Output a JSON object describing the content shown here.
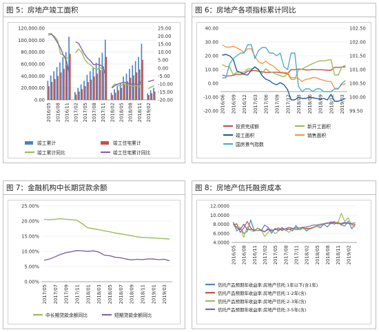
{
  "panels": {
    "p5": {
      "title": "图 5：房地产竣工面积"
    },
    "p6": {
      "title": "图 6：房地产各项指标累计同比"
    },
    "p7": {
      "title": "图 7：金融机构中长期贷款余额"
    },
    "p8": {
      "title": "图 8：房地产信托融资成本"
    }
  },
  "chart_data": [
    {
      "type": "bar",
      "x": [
        "2016/05",
        "2016/06",
        "2016/07",
        "2016/08",
        "2016/09",
        "2016/10",
        "2016/11",
        "2016/12",
        "2017/01",
        "2017/02",
        "2017/03",
        "2017/04",
        "2017/05",
        "2017/06",
        "2017/07",
        "2017/08",
        "2017/09",
        "2017/10",
        "2017/11",
        "2017/12",
        "2018/01",
        "2018/02",
        "2018/03",
        "2018/04",
        "2018/05",
        "2018/06",
        "2018/07",
        "2018/08",
        "2018/09",
        "2018/10",
        "2018/11",
        "2018/12",
        "2019/01",
        "2019/02",
        "2019/03",
        "2019/04"
      ],
      "x_tick_labels": [
        "2016/05",
        "2016/08",
        "2016/11",
        "2017/02",
        "2017/05",
        "2017/08",
        "2017/11",
        "2018/02",
        "2018/05",
        "2018/08",
        "2018/11",
        "2019/02"
      ],
      "y_left_ticks": [
        "0.00",
        "20,000.00",
        "40,000.00",
        "60,000.00",
        "80,000.00",
        "100,000.00",
        "120,000.00"
      ],
      "y_right_ticks": [
        "25.00",
        "20.00",
        "15.00",
        "10.00",
        "5.00",
        "0.00",
        "-5.00",
        "-10.00",
        "-15.00",
        "-20.00"
      ],
      "ylim_left": [
        0,
        120000
      ],
      "ylim_right": [
        -20,
        25
      ],
      "series": [
        {
          "name": "竣工累计",
          "kind": "bar",
          "axis": "left",
          "color": "#4f81bd",
          "values": [
            32000,
            41000,
            48000,
            55000,
            63000,
            72000,
            80000,
            106000,
            null,
            13000,
            20000,
            26000,
            32000,
            42000,
            48000,
            55000,
            62000,
            71000,
            79000,
            101000,
            null,
            12000,
            18000,
            23000,
            28000,
            39000,
            44000,
            52000,
            58000,
            65000,
            72000,
            94000,
            null,
            11000,
            16000,
            20000
          ]
        },
        {
          "name": "竣工住宅累计",
          "kind": "bar",
          "axis": "left",
          "color": "#c0504d",
          "values": [
            23000,
            30000,
            35000,
            40000,
            46000,
            52000,
            58000,
            77000,
            null,
            9000,
            14000,
            18000,
            23000,
            30000,
            34000,
            39000,
            44000,
            50000,
            56000,
            72000,
            null,
            8000,
            12000,
            16000,
            20000,
            27000,
            31000,
            37000,
            41000,
            46000,
            51000,
            67000,
            null,
            8000,
            11000,
            14000
          ]
        },
        {
          "name": "竣工累计同比",
          "kind": "line",
          "axis": "right",
          "color": "#9bbb59",
          "values": [
            20.5,
            21,
            20,
            17.5,
            9,
            8,
            6.5,
            6,
            null,
            9.5,
            12,
            10,
            5.5,
            3,
            2,
            0,
            -1,
            0.5,
            -1,
            -4.5,
            null,
            -12,
            -10,
            -11,
            -11,
            -10,
            -10.5,
            -11,
            -11.5,
            -11,
            -12,
            -8,
            null,
            -13,
            -12,
            -11
          ]
        },
        {
          "name": "竣工住宅累计同比",
          "kind": "line",
          "axis": "right",
          "color": "#8064a2",
          "values": [
            21.5,
            21.5,
            19,
            16,
            12.5,
            8,
            4.5,
            -4.5,
            null,
            16.5,
            15.5,
            12,
            8.5,
            6,
            4.5,
            2,
            2.5,
            2,
            1,
            -5,
            null,
            -12.5,
            -11,
            -10,
            -9.5,
            -9,
            -9.5,
            -10,
            -10,
            -10,
            -10.5,
            -7.5,
            null,
            -8.5,
            -8,
            -7.5
          ]
        }
      ]
    },
    {
      "type": "line",
      "x": [
        "2016/06",
        "2016/07",
        "2016/08",
        "2016/09",
        "2016/10",
        "2016/11",
        "2016/12",
        "2017/01",
        "2017/02",
        "2017/03",
        "2017/04",
        "2017/05",
        "2017/06",
        "2017/07",
        "2017/08",
        "2017/09",
        "2017/10",
        "2017/11",
        "2017/12",
        "2018/01",
        "2018/02",
        "2018/03",
        "2018/04",
        "2018/05",
        "2018/06",
        "2018/07",
        "2018/08",
        "2018/09",
        "2018/10",
        "2018/11",
        "2018/12",
        "2019/01",
        "2019/02",
        "2019/03",
        "2019/04"
      ],
      "x_tick_labels": [
        "2016/06",
        "2016/09",
        "2016/12",
        "2017/03",
        "2017/06",
        "2017/09",
        "2017/12",
        "2018/03",
        "2018/06",
        "2018/09",
        "2018/12",
        "2019/03"
      ],
      "y_left_ticks": [
        "-20.00",
        "-10.00",
        "0.00",
        "10.00",
        "20.00",
        "30.00",
        "40.00"
      ],
      "y_right_ticks": [
        "99.50",
        "100.00",
        "100.50",
        "101.00",
        "101.50",
        "102.00",
        "102.50"
      ],
      "ylim_left": [
        -20,
        40
      ],
      "ylim_right": [
        99.5,
        102.5
      ],
      "series": [
        {
          "name": "投资完成额",
          "axis": "left",
          "color": "#c0504d",
          "values": [
            6,
            5.3,
            5.4,
            5.8,
            6.6,
            6.5,
            6.9,
            8.9,
            9.1,
            9.3,
            8.8,
            8.5,
            7.9,
            7.9,
            8.1,
            8.1,
            7.8,
            7.5,
            7,
            9.9,
            9.9,
            10.4,
            10.2,
            9.7,
            9.7,
            10.1,
            9.9,
            9.9,
            9.7,
            9.5,
            9.5,
            11.6,
            11.6,
            11.8,
            11.9
          ]
        },
        {
          "name": "新开工面积",
          "axis": "left",
          "color": "#9bbb59",
          "values": [
            13.7,
            12.2,
            12.1,
            6.2,
            8,
            8.1,
            8.1,
            10.4,
            10.4,
            11.6,
            9.6,
            7.3,
            10.6,
            8.5,
            7.9,
            6.4,
            5.6,
            4.8,
            7,
            2.9,
            2.9,
            9.7,
            10.4,
            11.8,
            13.2,
            14.4,
            15.5,
            16.4,
            16.3,
            16.8,
            17.2,
            6,
            6,
            11.9,
            13.1
          ]
        },
        {
          "name": "竣工面积",
          "axis": "left",
          "color": "#1f5c99",
          "values": [
            20.5,
            21,
            20,
            17.5,
            9,
            8,
            6.5,
            6,
            9.5,
            12,
            10,
            5.5,
            3,
            2,
            0,
            -1,
            0.5,
            -1,
            -4.5,
            -12,
            -12,
            -10,
            -11,
            -11,
            -10,
            -10.5,
            -11,
            -11.5,
            -11,
            -12,
            -8,
            -13,
            -13,
            -12,
            -11
          ]
        },
        {
          "name": "销售面积",
          "axis": "left",
          "color": "#f79646",
          "values": [
            27.9,
            26.4,
            26.2,
            26.9,
            25.8,
            24.3,
            22.5,
            25.1,
            25.1,
            19.5,
            15.7,
            14.3,
            16.1,
            14,
            12.7,
            10.3,
            8.2,
            7.9,
            7.7,
            4.1,
            4.1,
            3.6,
            1.3,
            2.9,
            3.3,
            4.2,
            4,
            2.9,
            2.2,
            1.4,
            1.3,
            -3.6,
            -3.6,
            -0.9,
            -0.3
          ]
        },
        {
          "name": "国房景气指数",
          "axis": "right",
          "color": "#4bacc6",
          "values": [
            100.7,
            100.7,
            101.2,
            101.4,
            101.5,
            101.6,
            101.6,
            101.9,
            101.9,
            101.4,
            101.7,
            101.8,
            101.8,
            101.6,
            101.6,
            101.5,
            101.6,
            101.1,
            101,
            101.6,
            101.6,
            100.4,
            100.2,
            100.3,
            100.3,
            100.2,
            100.3,
            100.3,
            100.2,
            100.2,
            100.2,
            100.3,
            100.3,
            100.5,
            100.6
          ]
        }
      ]
    },
    {
      "type": "line",
      "x": [
        "2017/05",
        "2017/06",
        "2017/07",
        "2017/08",
        "2017/09",
        "2017/10",
        "2017/11",
        "2017/12",
        "2018/01",
        "2018/02",
        "2018/03",
        "2018/04",
        "2018/05",
        "2018/06",
        "2018/07",
        "2018/08",
        "2018/09",
        "2018/10",
        "2018/11",
        "2018/12",
        "2019/01",
        "2019/02",
        "2019/03",
        "2019/04"
      ],
      "x_tick_labels": [
        "2017/05",
        "2017/07",
        "2017/09",
        "2017/11",
        "2018/01",
        "2018/03",
        "2018/05",
        "2018/07",
        "2018/09",
        "2018/11",
        "2019/01",
        "2019/03"
      ],
      "y_ticks": [
        "0.00%",
        "5.00%",
        "10.00%",
        "15.00%",
        "20.00%",
        "25.00%"
      ],
      "ylim": [
        0,
        25
      ],
      "series": [
        {
          "name": "中长期贷款余额同比",
          "color": "#9bbb59",
          "values": [
            20.6,
            20.5,
            20.6,
            20.8,
            20.6,
            20.5,
            20.3,
            19.1,
            17.8,
            17.5,
            17.2,
            16.8,
            16.5,
            16.1,
            15.8,
            15.5,
            15.2,
            14.8,
            14.6,
            14.5,
            14.4,
            14.3,
            14.2,
            14.1
          ]
        },
        {
          "name": "短期贷款余额同比",
          "color": "#8064a2",
          "values": [
            7.1,
            7.5,
            8.2,
            9,
            9.6,
            9.9,
            10.3,
            10.2,
            10,
            10.2,
            9.8,
            8.8,
            8.6,
            8.1,
            7.9,
            7.5,
            7.2,
            7.4,
            7.3,
            7.5,
            7.5,
            7.3,
            7.4,
            6.9
          ]
        }
      ]
    },
    {
      "type": "line",
      "x": [
        "2016/05",
        "2016/06",
        "2016/07",
        "2016/08",
        "2016/09",
        "2016/10",
        "2016/11",
        "2016/12",
        "2017/01",
        "2017/02",
        "2017/03",
        "2017/04",
        "2017/05",
        "2017/06",
        "2017/07",
        "2017/08",
        "2017/09",
        "2017/10",
        "2017/11",
        "2017/12",
        "2018/01",
        "2018/02",
        "2018/03",
        "2018/04",
        "2018/05",
        "2018/06",
        "2018/07",
        "2018/08",
        "2018/09",
        "2018/10",
        "2018/11",
        "2018/12",
        "2019/01",
        "2019/02",
        "2019/03",
        "2019/04"
      ],
      "x_tick_labels": [
        "2016/05",
        "2016/08",
        "2016/11",
        "2017/02",
        "2017/05",
        "2017/08",
        "2017/11",
        "2018/02",
        "2018/05",
        "2018/08",
        "2018/11",
        "2019/02"
      ],
      "y_ticks": [
        "4.0000",
        "6.0000",
        "8.0000",
        "10.0000",
        "12.0000"
      ],
      "ylim": [
        4,
        12
      ],
      "series": [
        {
          "name": "信托产品预期年收益率:房地产信托:1年以下(含1年)",
          "color": "#4f81bd",
          "values": [
            8.5,
            6.5,
            7.2,
            6,
            6.4,
            8.9,
            6.6,
            7.2,
            6.5,
            7.8,
            7.3,
            6,
            7.1,
            6.5,
            7.3,
            6.6,
            7,
            6.5,
            7.7,
            6.8,
            7.4,
            6.5,
            7,
            7.3,
            7.6,
            7.2,
            8,
            7.4,
            8.3,
            8,
            8.5,
            7.8,
            7.6,
            8.7,
            7,
            7.9
          ]
        },
        {
          "name": "信托产品预期年收益率:房地产信托:1-2年(含)",
          "color": "#c0504d",
          "values": [
            7.8,
            8.1,
            6.2,
            7.2,
            8.6,
            7.2,
            6.5,
            7.1,
            6.7,
            6.3,
            7.1,
            6.7,
            6.8,
            7.2,
            6.6,
            7,
            6.9,
            7.1,
            6.8,
            6.9,
            7,
            7.1,
            7.1,
            7.3,
            7.6,
            7.7,
            8.1,
            8.3,
            8.1,
            8.4,
            8.4,
            8,
            8.2,
            8.2,
            8,
            7.9
          ]
        },
        {
          "name": "信托产品预期年收益率:房地产信托:2-3年(含)",
          "color": "#9bbb59",
          "values": [
            7.6,
            7.5,
            7.3,
            5.1,
            7.4,
            6.6,
            6.4,
            7.2,
            6.8,
            5.3,
            6.2,
            6.9,
            5.9,
            6.5,
            7,
            6.7,
            6.2,
            6.9,
            7.2,
            6.8,
            7,
            6.9,
            6.9,
            7.2,
            7.5,
            7.7,
            8.1,
            8.2,
            8.4,
            8.6,
            8.2,
            10.4,
            8.6,
            9.4,
            7.8,
            7.4
          ]
        },
        {
          "name": "信托产品预期年收益率:房地产信托:3-5年(含)",
          "color": "#8064a2",
          "values": [
            8.2,
            7.2,
            6.8,
            8,
            6.8,
            6.9,
            6.7,
            6.6,
            6.7,
            6.4,
            6.8,
            6.5,
            6.9,
            6.8,
            6.9,
            7,
            7.3,
            7.1,
            7.2,
            7.2,
            7.3,
            7.4,
            7.6,
            7.8,
            7.8,
            8,
            8.1,
            8.2,
            8.5,
            8.3,
            8.1,
            8.2,
            8.4,
            8.2,
            8.2,
            8.3
          ]
        }
      ]
    }
  ]
}
